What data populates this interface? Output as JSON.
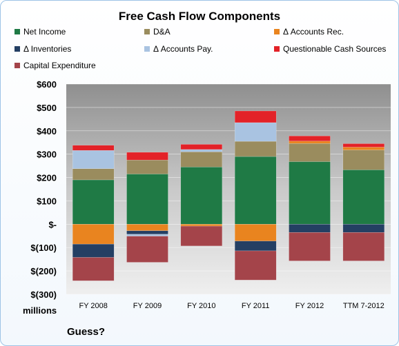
{
  "chart_data": {
    "type": "bar",
    "stacked": true,
    "title": "Free Cash Flow Components",
    "unit_label": "millions",
    "caption": "Guess?",
    "categories": [
      "FY 2008",
      "FY 2009",
      "FY 2010",
      "FY 2011",
      "FY 2012",
      "TTM 7-2012"
    ],
    "ylim": [
      -300,
      600
    ],
    "yticks": [
      600,
      500,
      400,
      300,
      200,
      100,
      0,
      -100,
      -200,
      -300
    ],
    "ytick_labels": [
      "$600",
      "$500",
      "$400",
      "$300",
      "$200",
      "$100",
      "$-",
      "$(100)",
      "$(200)",
      "$(300)"
    ],
    "legend_position": "top",
    "series": [
      {
        "name": "Net Income",
        "color": "#1f7a45",
        "values": [
          190,
          215,
          245,
          290,
          268,
          233
        ]
      },
      {
        "name": "D&A",
        "color": "#9a8c5e",
        "values": [
          48,
          60,
          65,
          65,
          78,
          85
        ]
      },
      {
        "name": "Δ Accounts Rec.",
        "color": "#e9841f",
        "values": [
          -85,
          -28,
          -8,
          -72,
          10,
          12
        ]
      },
      {
        "name": "Δ Inventories",
        "color": "#243f63",
        "values": [
          -57,
          -15,
          0,
          -42,
          -35,
          -35
        ]
      },
      {
        "name": "Δ Accounts Pay.",
        "color": "#a9c3e1",
        "values": [
          78,
          -8,
          10,
          80,
          0,
          0
        ]
      },
      {
        "name": "Questionable Cash Sources",
        "color": "#e32228",
        "values": [
          22,
          33,
          22,
          50,
          22,
          15
        ]
      },
      {
        "name": "Capital Expenditure",
        "color": "#a4444a",
        "values": [
          -100,
          -112,
          -85,
          -125,
          -122,
          -122
        ]
      }
    ]
  }
}
